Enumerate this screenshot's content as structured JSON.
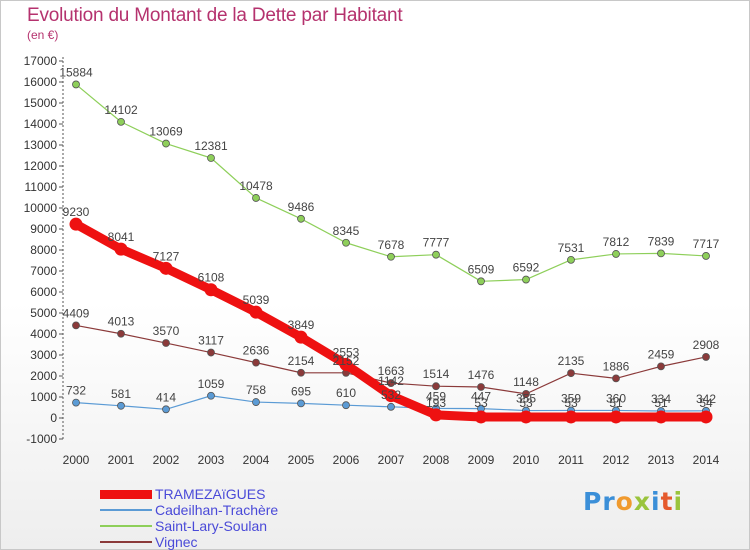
{
  "title": "Evolution du Montant de la Dette par Habitant",
  "subtitle": "(en €)",
  "logo": {
    "text": "Proxiti"
  },
  "chart_data": {
    "type": "line",
    "title": "Evolution du Montant de la Dette par Habitant",
    "subtitle": "(en €)",
    "xlabel": "",
    "ylabel": "",
    "x": [
      2000,
      2001,
      2002,
      2003,
      2004,
      2005,
      2006,
      2007,
      2008,
      2009,
      2010,
      2011,
      2012,
      2013,
      2014
    ],
    "ylim": [
      -1000,
      17000
    ],
    "yticks": [
      -1000,
      0,
      1000,
      2000,
      3000,
      4000,
      5000,
      6000,
      7000,
      8000,
      9000,
      10000,
      11000,
      12000,
      13000,
      14000,
      15000,
      16000,
      17000
    ],
    "grid": false,
    "legend_position": "bottom-left",
    "series": [
      {
        "name": "TRAMEZAïGUES",
        "color": "#ee1111",
        "emphasis": true,
        "values": [
          9230,
          8041,
          7127,
          6108,
          5039,
          3849,
          2553,
          1063,
          150,
          50,
          50,
          50,
          50,
          50,
          50
        ],
        "labels": [
          "9230",
          "8041",
          "7127",
          "6108",
          "5039",
          "3849",
          "2553",
          "",
          "",
          "",
          "",
          "",
          "",
          "",
          ""
        ]
      },
      {
        "name": "Cadeilhan-Trachère",
        "color": "#5b9bd5",
        "values": [
          732,
          581,
          414,
          1059,
          758,
          695,
          610,
          532,
          459,
          447,
          355,
          359,
          360,
          334,
          342
        ],
        "labels": [
          "732",
          "581",
          "414",
          "1059",
          "758",
          "695",
          "610",
          "532",
          "459",
          "447",
          "355",
          "359",
          "360",
          "334",
          "342"
        ]
      },
      {
        "name": "Saint-Lary-Soulan",
        "color": "#8ecf5a",
        "values": [
          15884,
          14102,
          13069,
          12381,
          10478,
          9486,
          8345,
          7678,
          7777,
          6509,
          6592,
          7531,
          7812,
          7839,
          7717
        ],
        "labels": [
          "15884",
          "14102",
          "13069",
          "12381",
          "10478",
          "9486",
          "8345",
          "7678",
          "7777",
          "6509",
          "6592",
          "7531",
          "7812",
          "7839",
          "7717"
        ]
      },
      {
        "name": "Vignec",
        "color": "#8b3a3a",
        "values": [
          4409,
          4013,
          3570,
          3117,
          2636,
          2154,
          2152,
          1663,
          1514,
          1476,
          1148,
          2135,
          1886,
          2459,
          2908
        ],
        "labels": [
          "4409",
          "4013",
          "3570",
          "3117",
          "2636",
          "2154",
          "2152",
          "1663",
          "1514",
          "1476",
          "1148",
          "2135",
          "1886",
          "2459",
          "2908"
        ]
      }
    ],
    "extra_labels": [
      "1142",
      "193",
      "53",
      "53",
      "53",
      "51",
      "51",
      "54"
    ]
  }
}
